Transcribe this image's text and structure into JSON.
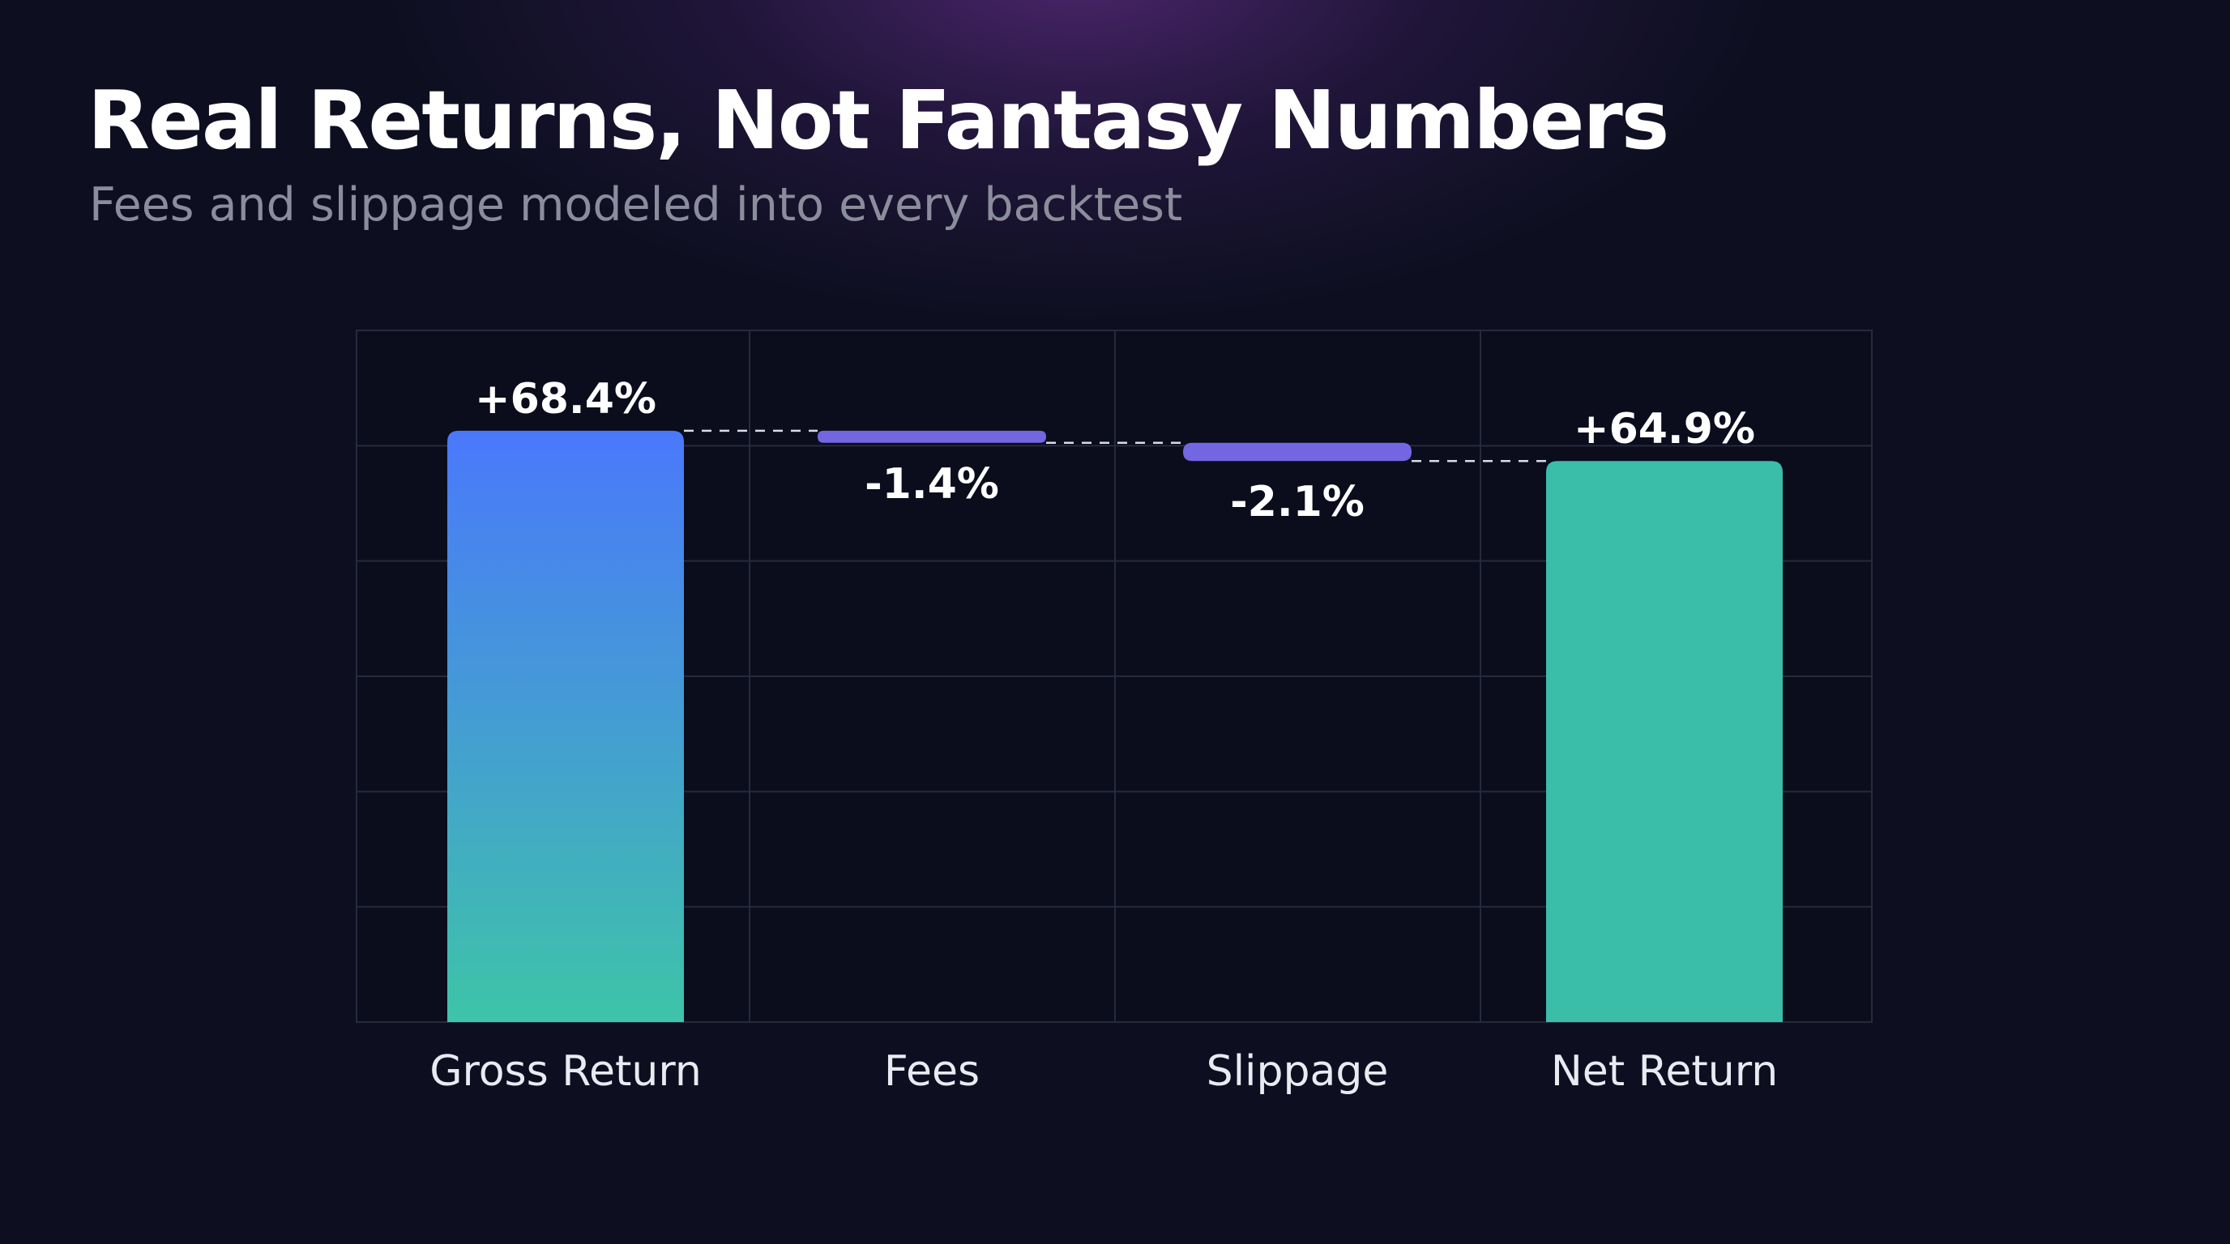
{
  "header": {
    "title": "Real Returns, Not Fantasy Numbers",
    "subtitle": "Fees and slippage modeled into every backtest"
  },
  "colors": {
    "background": "#0d0f20",
    "gross_bar_top": "#4a78fb",
    "gross_bar_bottom": "#3ec4a8",
    "deduction_bar": "#7366e1",
    "net_bar": "#3abda9",
    "connector": "#d9dbe6"
  },
  "chart_data": {
    "type": "bar",
    "subtype": "waterfall",
    "categories": [
      "Gross Return",
      "Fees",
      "Slippage",
      "Net Return"
    ],
    "values": [
      68.4,
      -1.4,
      -2.1,
      64.9
    ],
    "kinds": [
      "total",
      "delta",
      "delta",
      "total"
    ],
    "labels": [
      "+68.4%",
      "-1.4%",
      "-2.1%",
      "+64.9%"
    ],
    "title": "",
    "xlabel": "",
    "ylabel": "",
    "ylim": [
      0,
      80
    ],
    "grid": true,
    "legend": "none"
  }
}
